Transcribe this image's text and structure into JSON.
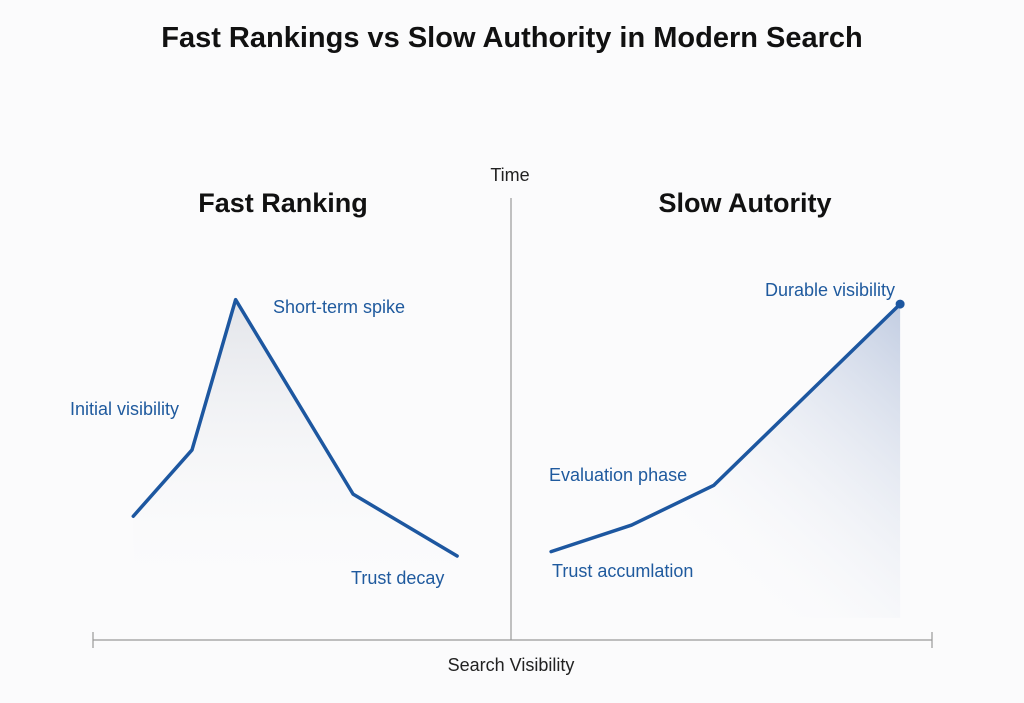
{
  "title": "Fast Rankings vs Slow Authority in Modern Search",
  "colors": {
    "line": "#1d57a0",
    "annotation": "#1f5a9e",
    "axis": "#999999",
    "background": "#fbfbfc"
  },
  "chart_data": {
    "type": "line",
    "xlabel": "Search Visibility",
    "ylabel": "Time",
    "xlim": [
      0,
      100
    ],
    "ylim": [
      0,
      100
    ],
    "grid": false,
    "panels": [
      {
        "title": "Fast Ranking",
        "x": [
          4.8,
          11.8,
          17.0,
          31.0,
          43.4
        ],
        "y": [
          28,
          43,
          77,
          33,
          19
        ],
        "annotations": [
          "Initial visibility",
          "Short-term spike",
          "Trust decay"
        ]
      },
      {
        "title": "Slow Autority",
        "x": [
          54.6,
          64.2,
          74.0,
          96.2
        ],
        "y": [
          20,
          26,
          35,
          76
        ],
        "annotations": [
          "Trust accumlation",
          "Evaluation phase",
          "Durable visibility"
        ]
      }
    ]
  }
}
